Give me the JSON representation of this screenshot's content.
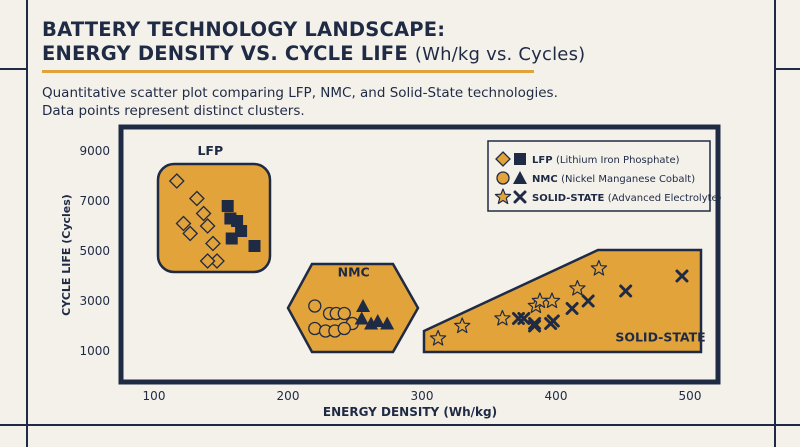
{
  "header": {
    "title_line1": "BATTERY TECHNOLOGY LANDSCAPE:",
    "title_line2_bold": "ENERGY DENSITY VS. CYCLE LIFE",
    "title_line2_light": "(Wh/kg vs. Cycles)",
    "subtitle_line1": "Quantitative scatter plot comparing LFP, NMC, and Solid-State technologies.",
    "subtitle_line2": "Data points represent distinct clusters."
  },
  "colors": {
    "navy": "#1f2a44",
    "gold": "#e2a43a",
    "cream": "#f3f1ea"
  },
  "chart_data": {
    "type": "scatter",
    "xlabel": "ENERGY DENSITY (Wh/kg)",
    "ylabel": "CYCLE LIFE (Cycles)",
    "xlim": [
      75,
      530
    ],
    "ylim": [
      -400,
      10000
    ],
    "x_ticks": [
      100,
      200,
      300,
      400,
      500
    ],
    "y_ticks": [
      1000,
      3000,
      5000,
      7000,
      9000
    ],
    "grid": false,
    "legend_position": "top-right",
    "cluster_labels": [
      {
        "name": "LFP",
        "x": 142,
        "y": 9000
      },
      {
        "name": "NMC",
        "x": 249,
        "y": 4150
      },
      {
        "name": "SOLID-STATE",
        "x": 478,
        "y": 1550
      }
    ],
    "legend": [
      {
        "key": "lfp",
        "bold": "LFP",
        "detail": "(Lithium Iron Phosphate)"
      },
      {
        "key": "nmc",
        "bold": "NMC",
        "detail": "(Nickel Manganese Cobalt)"
      },
      {
        "key": "ss",
        "bold": "SOLID-STATE",
        "detail": "(Advanced Electrolyte)"
      }
    ],
    "series": [
      {
        "name": "LFP",
        "marker": "diamond",
        "x": [
          117,
          132,
          137,
          122,
          140,
          127,
          144,
          147,
          140
        ],
        "y": [
          7800,
          7100,
          6500,
          6100,
          6000,
          5700,
          5300,
          4600,
          4600
        ]
      },
      {
        "name": "LFP",
        "marker": "square",
        "x": [
          155,
          157,
          162,
          165,
          158,
          175
        ],
        "y": [
          6800,
          6300,
          6200,
          5800,
          5500,
          5200
        ]
      },
      {
        "name": "NMC",
        "marker": "circle",
        "x": [
          220,
          231,
          236,
          242,
          248,
          220,
          228,
          235,
          242
        ],
        "y": [
          2800,
          2500,
          2500,
          2500,
          2100,
          1900,
          1800,
          1800,
          1900
        ]
      },
      {
        "name": "NMC",
        "marker": "triangle",
        "x": [
          256,
          255,
          262,
          267,
          274
        ],
        "y": [
          2800,
          2300,
          2100,
          2200,
          2100
        ]
      },
      {
        "name": "SOLID-STATE",
        "marker": "star",
        "x": [
          312,
          330,
          360,
          385,
          397,
          388,
          416,
          432
        ],
        "y": [
          1500,
          2000,
          2300,
          2800,
          3000,
          3000,
          3500,
          4300
        ]
      },
      {
        "name": "SOLID-STATE",
        "marker": "cross",
        "x": [
          372,
          376,
          384,
          384,
          398,
          396,
          412,
          424,
          452,
          494
        ],
        "y": [
          2300,
          2300,
          2100,
          2000,
          2200,
          2100,
          2700,
          3000,
          3400,
          4000
        ]
      }
    ]
  }
}
